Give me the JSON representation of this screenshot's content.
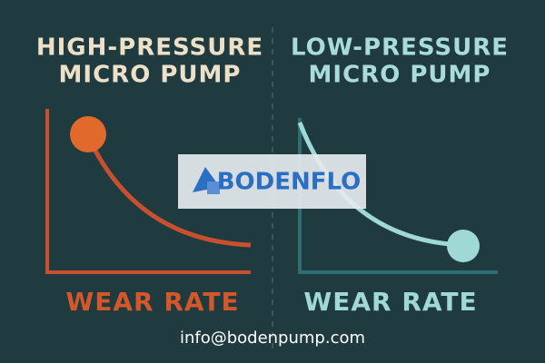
{
  "left": {
    "title": [
      "HIGH-PRESSURE",
      "MICRO PUMP"
    ],
    "label": "WEAR RATE"
  },
  "right": {
    "title": [
      "LOW-PRESSURE",
      "MICRO PUMP"
    ],
    "label": "WEAR RATE"
  },
  "logo": "BODENFLO",
  "contact": "info@bodenpump.com"
}
